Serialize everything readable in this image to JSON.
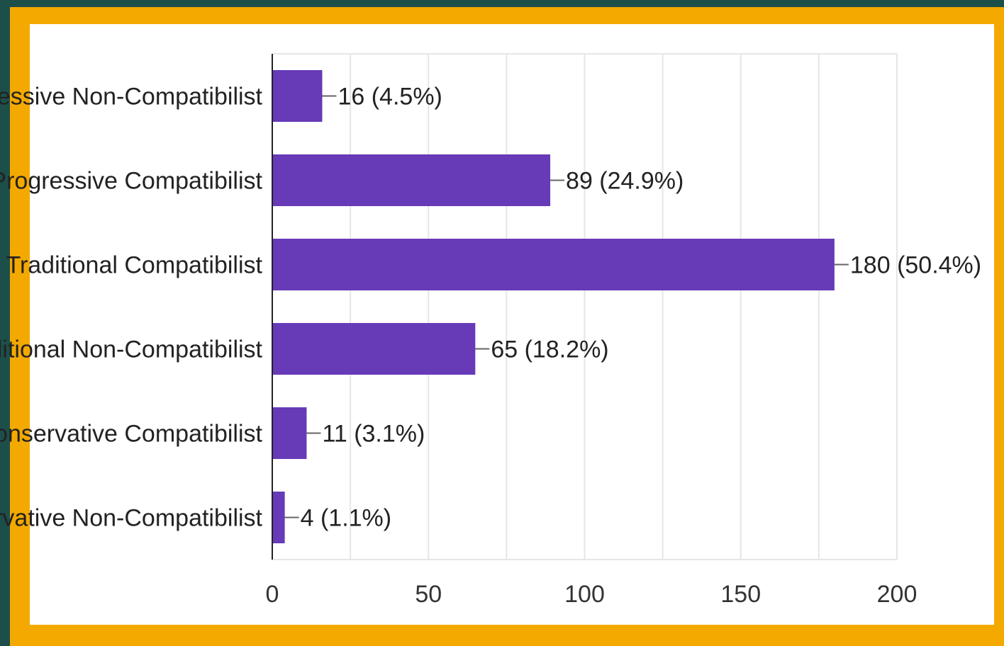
{
  "colors": {
    "bar": "#673ab7",
    "frame": "#f4a900",
    "background": "#1d4f4a"
  },
  "chart_data": {
    "type": "bar",
    "orientation": "horizontal",
    "categories": [
      "Progressive Non-Compatibilist",
      "Progressive Compatibilist",
      "Traditional Compatibilist",
      "Traditional Non-Compatibilist",
      "Conservative Compatibilist",
      "Conservative Non-Compatibilist"
    ],
    "values": [
      16,
      89,
      180,
      65,
      11,
      4
    ],
    "data_labels": [
      "16 (4.5%)",
      "89 (24.9%)",
      "180 (50.4%)",
      "65 (18.2%)",
      "11 (3.1%)",
      "4 (1.1%)"
    ],
    "xlim": [
      0,
      200
    ],
    "xticks": [
      0,
      50,
      100,
      150,
      200
    ],
    "grid": true,
    "title": "",
    "xlabel": "",
    "ylabel": ""
  }
}
